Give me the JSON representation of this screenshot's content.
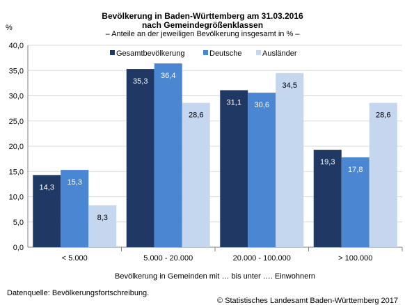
{
  "chart_data": {
    "type": "bar",
    "title": "Bevölkerung in Baden-Württemberg am 31.03.2016",
    "title_line2": "nach Gemeindegrößenklassen",
    "subtitle": "– Anteile  an der jeweiligen Bevölkerung insgesamt in % –",
    "ylabel": "%",
    "xlabel": "Bevölkerung in Gemeinden mit … bis unter …. Einwohnern",
    "ylim": [
      0,
      40
    ],
    "yticks": [
      "0,0",
      "5,0",
      "10,0",
      "15,0",
      "20,0",
      "25,0",
      "30,0",
      "35,0",
      "40,0"
    ],
    "categories": [
      "< 5.000",
      "5.000 - 20.000",
      "20.000 - 100.000",
      "> 100.000"
    ],
    "series": [
      {
        "name": "Gesamtbevölkerung",
        "color": "#1f3864",
        "values": [
          14.3,
          35.3,
          31.1,
          19.3
        ],
        "labels": [
          "14,3",
          "35,3",
          "31,1",
          "19,3"
        ],
        "label_color": "#ffffff"
      },
      {
        "name": "Deutsche",
        "color": "#4a86d2",
        "values": [
          15.3,
          36.4,
          30.6,
          17.8
        ],
        "labels": [
          "15,3",
          "36,4",
          "30,6",
          "17,8"
        ],
        "label_color": "#ffffff"
      },
      {
        "name": "Ausländer",
        "color": "#c5d7ef",
        "values": [
          8.3,
          28.6,
          34.5,
          28.6
        ],
        "labels": [
          "8,3",
          "28,6",
          "34,5",
          "28,6"
        ],
        "label_color": "#000000"
      }
    ],
    "grid": true,
    "legend_position": "top-right"
  },
  "footer": {
    "source": "Datenquelle: Bevölkerungsfortschreibung.",
    "copyright": "© Statistisches Landesamt Baden-Württemberg 2017"
  }
}
